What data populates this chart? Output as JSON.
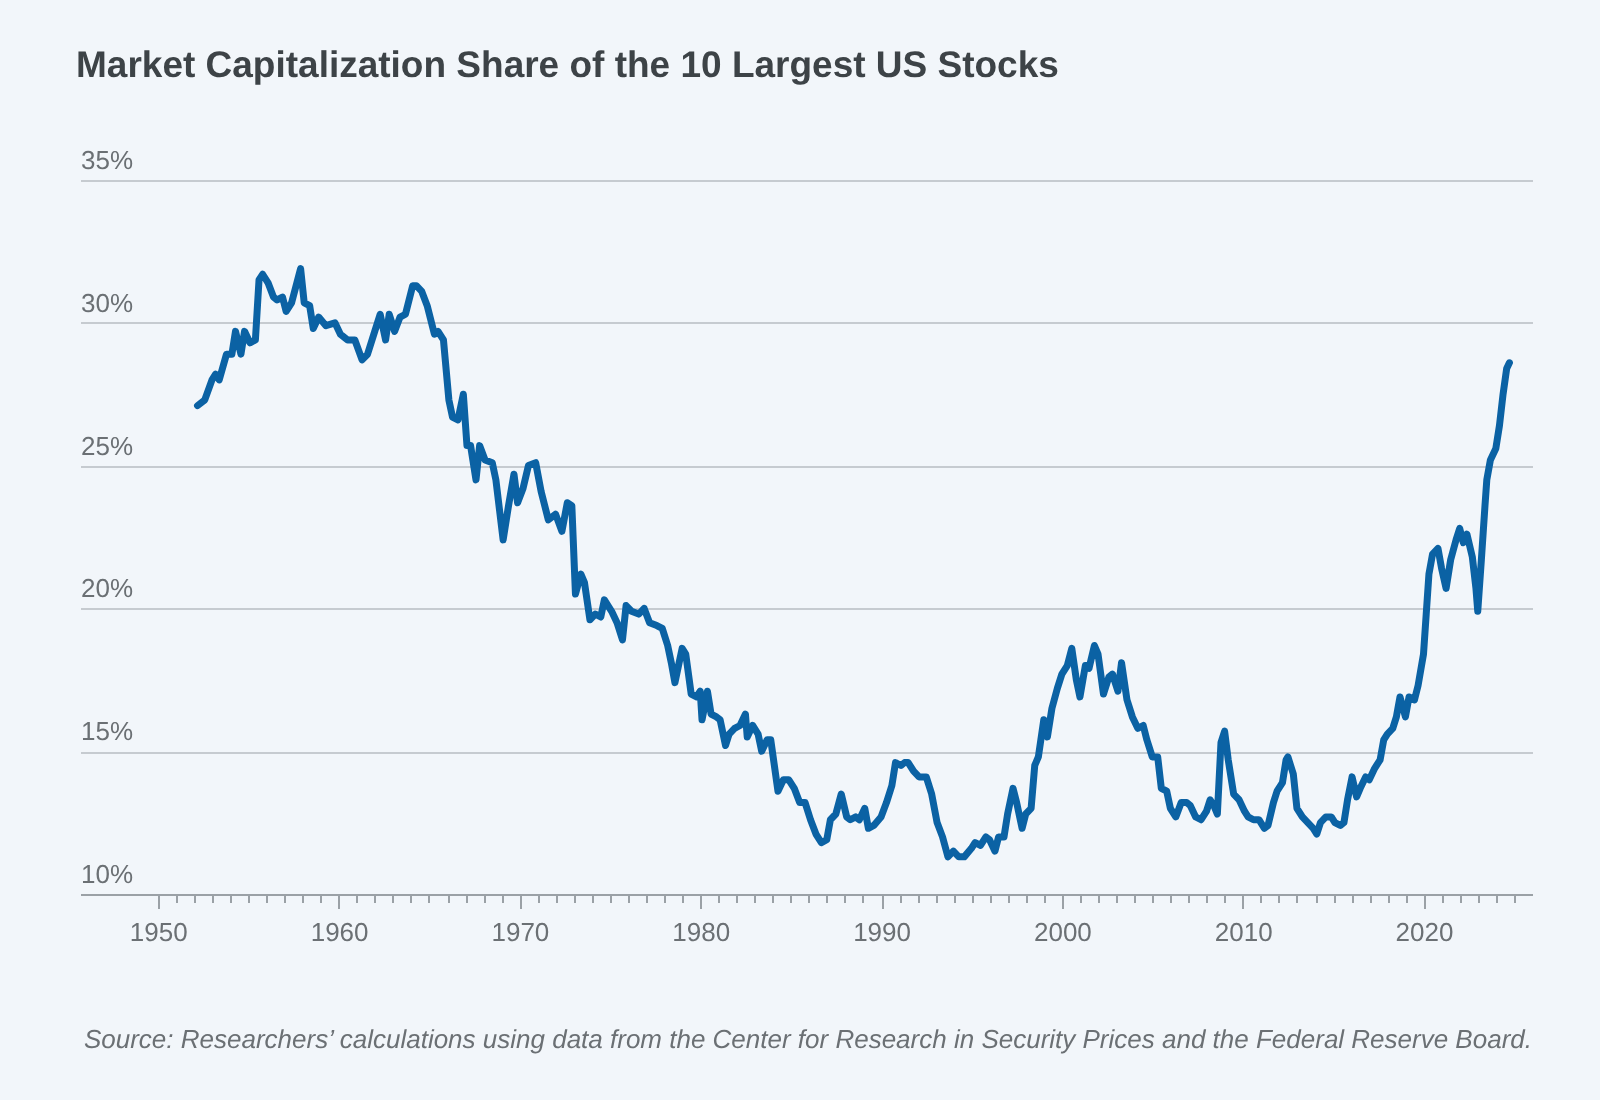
{
  "chart_data": {
    "type": "line",
    "title": "Market Capitalization Share of the 10 Largest US Stocks",
    "annotations": [
      "Source: Researchers’ calculations using data from the Center for Research in Security Prices and the Federal Reserve Board."
    ],
    "xlim": [
      1945.7,
      2026
    ],
    "xticks": [
      1950,
      {
        "value": 1951,
        "label": null
      },
      {
        "value": 1952,
        "label": null
      },
      {
        "value": 1953,
        "label": null
      },
      {
        "value": 1954,
        "label": null
      },
      {
        "value": 1955,
        "label": null
      },
      {
        "value": 1956,
        "label": null
      },
      {
        "value": 1957,
        "label": null
      },
      {
        "value": 1958,
        "label": null
      },
      {
        "value": 1959,
        "label": null
      },
      1960,
      {
        "value": 1961,
        "label": null
      },
      {
        "value": 1962,
        "label": null
      },
      {
        "value": 1963,
        "label": null
      },
      {
        "value": 1964,
        "label": null
      },
      {
        "value": 1965,
        "label": null
      },
      {
        "value": 1966,
        "label": null
      },
      {
        "value": 1967,
        "label": null
      },
      {
        "value": 1968,
        "label": null
      },
      {
        "value": 1969,
        "label": null
      },
      1970,
      {
        "value": 1971,
        "label": null
      },
      {
        "value": 1972,
        "label": null
      },
      {
        "value": 1973,
        "label": null
      },
      {
        "value": 1974,
        "label": null
      },
      {
        "value": 1975,
        "label": null
      },
      {
        "value": 1976,
        "label": null
      },
      {
        "value": 1977,
        "label": null
      },
      {
        "value": 1978,
        "label": null
      },
      {
        "value": 1979,
        "label": null
      },
      1980,
      {
        "value": 1981,
        "label": null
      },
      {
        "value": 1982,
        "label": null
      },
      {
        "value": 1983,
        "label": null
      },
      {
        "value": 1984,
        "label": null
      },
      {
        "value": 1985,
        "label": null
      },
      {
        "value": 1986,
        "label": null
      },
      {
        "value": 1987,
        "label": null
      },
      {
        "value": 1988,
        "label": null
      },
      {
        "value": 1989,
        "label": null
      },
      1990,
      {
        "value": 1991,
        "label": null
      },
      {
        "value": 1992,
        "label": null
      },
      {
        "value": 1993,
        "label": null
      },
      {
        "value": 1994,
        "label": null
      },
      {
        "value": 1995,
        "label": null
      },
      {
        "value": 1996,
        "label": null
      },
      {
        "value": 1997,
        "label": null
      },
      {
        "value": 1998,
        "label": null
      },
      {
        "value": 1999,
        "label": null
      },
      2000,
      {
        "value": 2001,
        "label": null
      },
      {
        "value": 2002,
        "label": null
      },
      {
        "value": 2003,
        "label": null
      },
      {
        "value": 2004,
        "label": null
      },
      {
        "value": 2005,
        "label": null
      },
      {
        "value": 2006,
        "label": null
      },
      {
        "value": 2007,
        "label": null
      },
      {
        "value": 2008,
        "label": null
      },
      {
        "value": 2009,
        "label": null
      },
      2010,
      {
        "value": 2011,
        "label": null
      },
      {
        "value": 2012,
        "label": null
      },
      {
        "value": 2013,
        "label": null
      },
      {
        "value": 2014,
        "label": null
      },
      {
        "value": 2015,
        "label": null
      },
      {
        "value": 2016,
        "label": null
      },
      {
        "value": 2017,
        "label": null
      },
      {
        "value": 2018,
        "label": null
      },
      {
        "value": 2019,
        "label": null
      },
      2020,
      {
        "value": 2021,
        "label": null
      },
      {
        "value": 2022,
        "label": null
      },
      {
        "value": 2023,
        "label": null
      },
      {
        "value": 2024,
        "label": null
      },
      {
        "value": 2025,
        "label": null
      }
    ],
    "ylim": [
      10,
      35
    ],
    "yticks": [
      {
        "value": 10,
        "label": "10%"
      },
      {
        "value": 15,
        "label": "15%"
      },
      {
        "value": 20,
        "label": "20%"
      },
      {
        "value": 25,
        "label": "25%"
      },
      {
        "value": 30,
        "label": "30%"
      },
      {
        "value": 35,
        "label": "35%"
      }
    ],
    "grid": "y",
    "x": [
      1952.2,
      1952.6,
      1953.0,
      1953.2,
      1953.4,
      1953.8,
      1954.1,
      1954.3,
      1954.6,
      1954.8,
      1955.1,
      1955.4,
      1955.6,
      1955.8,
      1956.1,
      1956.4,
      1956.6,
      1956.9,
      1957.1,
      1957.4,
      1957.9,
      1958.1,
      1958.4,
      1958.6,
      1958.9,
      1959.3,
      1959.8,
      1960.1,
      1960.5,
      1960.9,
      1961.3,
      1961.6,
      1962.0,
      1962.3,
      1962.6,
      1962.8,
      1963.1,
      1963.4,
      1963.7,
      1964.1,
      1964.3,
      1964.6,
      1964.9,
      1965.3,
      1965.5,
      1965.8,
      1966.1,
      1966.3,
      1966.6,
      1966.9,
      1967.1,
      1967.3,
      1967.6,
      1967.8,
      1968.1,
      1968.5,
      1968.7,
      1969.1,
      1969.4,
      1969.7,
      1969.9,
      1970.2,
      1970.5,
      1970.9,
      1971.2,
      1971.6,
      1972.0,
      1972.35,
      1972.65,
      1972.9,
      1973.1,
      1973.4,
      1973.6,
      1973.9,
      1974.2,
      1974.5,
      1974.7,
      1975.1,
      1975.4,
      1975.7,
      1975.9,
      1976.2,
      1976.6,
      1976.9,
      1977.2,
      1977.6,
      1977.9,
      1978.2,
      1978.4,
      1978.6,
      1978.8,
      1979.0,
      1979.2,
      1979.5,
      1979.8,
      1980.0,
      1980.1,
      1980.4,
      1980.6,
      1980.9,
      1981.1,
      1981.4,
      1981.6,
      1981.9,
      1982.2,
      1982.5,
      1982.6,
      1982.9,
      1983.2,
      1983.4,
      1983.7,
      1983.9,
      1984.3,
      1984.6,
      1984.9,
      1985.2,
      1985.5,
      1985.8,
      1986.1,
      1986.4,
      1986.7,
      1987.0,
      1987.2,
      1987.5,
      1987.8,
      1988.1,
      1988.3,
      1988.6,
      1988.8,
      1989.1,
      1989.3,
      1989.6,
      1990.0,
      1990.3,
      1990.6,
      1990.8,
      1991.1,
      1991.3,
      1991.5,
      1991.8,
      1992.1,
      1992.5,
      1992.8,
      1993.1,
      1993.4,
      1993.7,
      1994.0,
      1994.3,
      1994.6,
      1995.0,
      1995.2,
      1995.5,
      1995.8,
      1996.0,
      1996.3,
      1996.5,
      1996.8,
      1997.0,
      1997.3,
      1997.5,
      1997.8,
      1998.0,
      1998.3,
      1998.5,
      1998.7,
      1999.0,
      1999.2,
      1999.45,
      1999.75,
      2000.0,
      2000.3,
      2000.55,
      2000.8,
      2001.0,
      2001.3,
      2001.5,
      2001.8,
      2002.0,
      2002.3,
      2002.6,
      2002.8,
      2003.1,
      2003.3,
      2003.6,
      2003.9,
      2004.2,
      2004.5,
      2004.7,
      2005.0,
      2005.3,
      2005.5,
      2005.8,
      2006.0,
      2006.3,
      2006.6,
      2006.9,
      2007.1,
      2007.4,
      2007.7,
      2008.0,
      2008.2,
      2008.4,
      2008.6,
      2008.8,
      2009.0,
      2009.2,
      2009.5,
      2009.8,
      2010.1,
      2010.3,
      2010.6,
      2010.9,
      2011.2,
      2011.4,
      2011.7,
      2011.9,
      2012.2,
      2012.4,
      2012.5,
      2012.8,
      2013.0,
      2013.3,
      2013.6,
      2013.9,
      2014.1,
      2014.3,
      2014.6,
      2014.9,
      2015.1,
      2015.4,
      2015.6,
      2015.8,
      2016.05,
      2016.3,
      2016.5,
      2016.8,
      2017.0,
      2017.3,
      2017.6,
      2017.8,
      2018.0,
      2018.3,
      2018.5,
      2018.7,
      2019.0,
      2019.2,
      2019.5,
      2019.7,
      2020.0,
      2020.15,
      2020.3,
      2020.5,
      2020.8,
      2021.0,
      2021.25,
      2021.5,
      2021.8,
      2022.0,
      2022.2,
      2022.4,
      2022.7,
      2022.9,
      2023.0,
      2023.2,
      2023.4,
      2023.5,
      2023.7,
      2024.0,
      2024.2,
      2024.4,
      2024.6,
      2024.75
    ],
    "series": [
      {
        "color": "#0b62a4",
        "values": [
          27.1,
          27.3,
          28.0,
          28.2,
          28.0,
          28.9,
          28.9,
          29.7,
          28.9,
          29.7,
          29.3,
          29.4,
          31.5,
          31.7,
          31.4,
          30.9,
          30.8,
          30.9,
          30.4,
          30.7,
          31.9,
          30.7,
          30.6,
          29.8,
          30.2,
          29.9,
          30.0,
          29.6,
          29.4,
          29.4,
          28.7,
          28.9,
          29.7,
          30.3,
          29.4,
          30.3,
          29.7,
          30.2,
          30.3,
          31.3,
          31.3,
          31.1,
          30.6,
          29.6,
          29.7,
          29.4,
          27.3,
          26.7,
          26.6,
          27.5,
          25.7,
          25.7,
          24.5,
          25.7,
          25.2,
          25.1,
          24.5,
          22.4,
          23.6,
          24.7,
          23.7,
          24.2,
          25.0,
          25.1,
          24.1,
          23.1,
          23.3,
          22.7,
          23.7,
          23.6,
          20.5,
          21.2,
          20.9,
          19.6,
          19.8,
          19.7,
          20.3,
          19.9,
          19.5,
          18.9,
          20.1,
          19.9,
          19.8,
          20.0,
          19.5,
          19.4,
          19.3,
          18.7,
          18.1,
          17.4,
          18.0,
          18.6,
          18.4,
          17.0,
          16.9,
          17.1,
          16.1,
          17.1,
          16.3,
          16.2,
          16.1,
          15.2,
          15.6,
          15.8,
          15.9,
          16.3,
          15.5,
          15.9,
          15.6,
          15.0,
          15.4,
          15.4,
          13.6,
          14.0,
          14.0,
          13.7,
          13.2,
          13.2,
          12.6,
          12.1,
          11.8,
          11.9,
          12.6,
          12.8,
          13.5,
          12.7,
          12.6,
          12.7,
          12.6,
          13.0,
          12.3,
          12.4,
          12.7,
          13.2,
          13.8,
          14.6,
          14.5,
          14.6,
          14.6,
          14.3,
          14.1,
          14.1,
          13.5,
          12.5,
          12.0,
          11.3,
          11.5,
          11.3,
          11.3,
          11.6,
          11.8,
          11.7,
          12.0,
          11.9,
          11.5,
          12.0,
          12.0,
          12.8,
          13.7,
          13.2,
          12.3,
          12.8,
          13.0,
          14.5,
          14.8,
          16.1,
          15.5,
          16.5,
          17.2,
          17.7,
          18.0,
          18.6,
          17.5,
          16.9,
          18.0,
          17.9,
          18.7,
          18.4,
          17.0,
          17.6,
          17.7,
          17.1,
          18.1,
          16.8,
          16.2,
          15.8,
          15.9,
          15.4,
          14.8,
          14.8,
          13.7,
          13.6,
          13.0,
          12.7,
          13.2,
          13.2,
          13.1,
          12.7,
          12.6,
          12.9,
          13.3,
          13.1,
          12.8,
          15.3,
          15.7,
          14.7,
          13.5,
          13.3,
          12.9,
          12.7,
          12.6,
          12.6,
          12.3,
          12.4,
          13.2,
          13.6,
          13.9,
          14.7,
          14.8,
          14.2,
          13.0,
          12.7,
          12.5,
          12.3,
          12.1,
          12.5,
          12.7,
          12.7,
          12.5,
          12.4,
          12.5,
          13.3,
          14.1,
          13.4,
          13.7,
          14.1,
          14.0,
          14.4,
          14.7,
          15.4,
          15.6,
          15.8,
          16.2,
          16.9,
          16.2,
          16.9,
          16.8,
          17.3,
          18.4,
          19.8,
          21.2,
          21.9,
          22.1,
          21.4,
          20.7,
          21.7,
          22.4,
          22.8,
          22.3,
          22.6,
          21.8,
          20.7,
          19.9,
          21.7,
          23.6,
          24.5,
          25.2,
          25.6,
          26.4,
          27.5,
          28.4,
          28.6
        ]
      }
    ]
  }
}
